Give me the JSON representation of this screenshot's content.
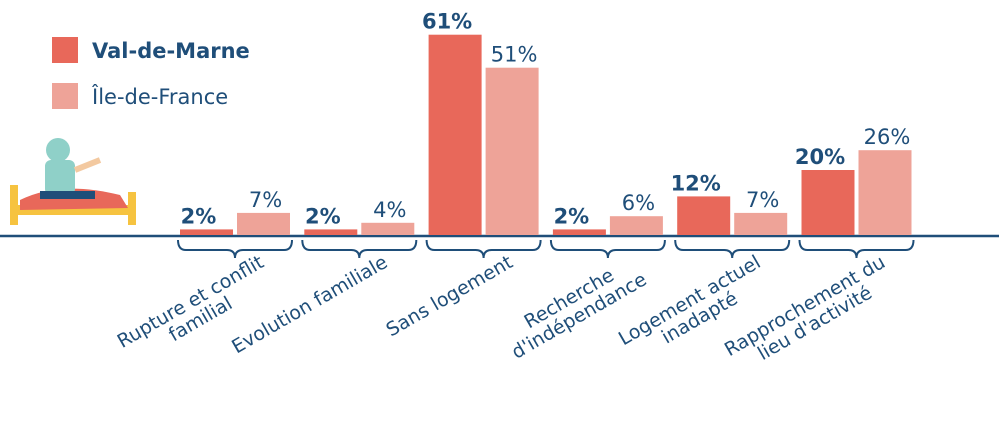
{
  "chart_data": {
    "type": "bar",
    "legend": "top-left",
    "categories": [
      "Rupture et conflit\nfamilial",
      "Evolution familiale",
      "Sans logement",
      "Recherche\nd'indépendance",
      "Logement actuel\ninadapté",
      "Rapprochement du\nlieu d'activité"
    ],
    "series": [
      {
        "name": "Val-de-Marne",
        "color": "#e8685a",
        "values": [
          2,
          2,
          61,
          2,
          12,
          20
        ],
        "value_labels": [
          "2%",
          "2%",
          "61%",
          "2%",
          "12%",
          "20%"
        ]
      },
      {
        "name": "Île-de-France",
        "color": "#eea398",
        "values": [
          7,
          4,
          51,
          6,
          7,
          26
        ],
        "value_labels": [
          "7%",
          "4%",
          "51%",
          "6%",
          "7%",
          "26%"
        ]
      }
    ]
  }
}
